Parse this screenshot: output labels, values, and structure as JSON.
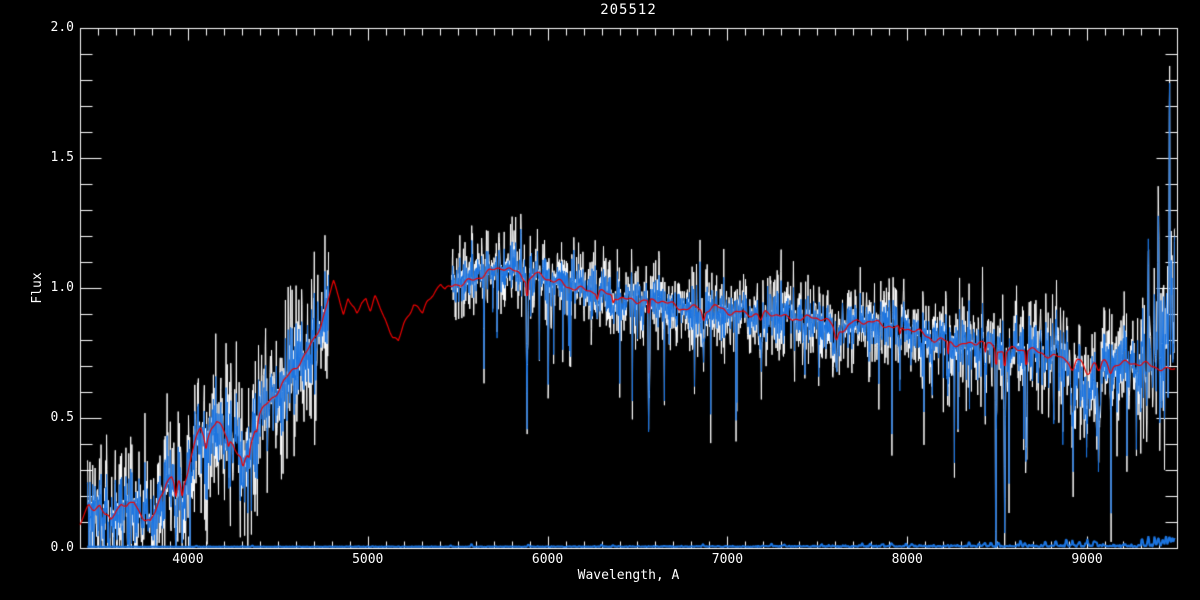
{
  "window": {
    "background": "#000000"
  },
  "chart_data": {
    "type": "line",
    "title": "205512",
    "xlabel": "Wavelength, A",
    "ylabel": "Flux",
    "xlim": [
      3400,
      9500
    ],
    "ylim": [
      0.0,
      2.0
    ],
    "grid": false,
    "legend": "none",
    "background_color": "#000000",
    "axis_color": "#ffffff",
    "x_major_ticks": [
      4000,
      5000,
      6000,
      7000,
      8000,
      9000
    ],
    "x_tick_labels": [
      "4000",
      "5000",
      "6000",
      "7000",
      "8000",
      "9000"
    ],
    "x_minor_step": 100,
    "y_major_ticks": [
      0.0,
      0.5,
      1.0,
      1.5,
      2.0
    ],
    "y_tick_labels": [
      "0.0",
      "0.5",
      "1.0",
      "1.5",
      "2.0"
    ],
    "y_minor_step": 0.1,
    "series": [
      {
        "name": "observed-raw-envelope",
        "color": "#ffffff",
        "role": "envelope",
        "noise_scale": 1.9
      },
      {
        "name": "observed-spectrum",
        "color": "#1b74e0",
        "role": "spectrum",
        "noise_scale": 1.0
      },
      {
        "name": "model-fit",
        "color": "#ee0000",
        "role": "model"
      },
      {
        "name": "sky-error-spectrum",
        "color": "#1b74e0",
        "role": "sky"
      }
    ],
    "data_range": [
      3440,
      9490
    ],
    "gap": [
      4783,
      5465
    ],
    "seed": 205512,
    "continuum": [
      [
        3400,
        0.09
      ],
      [
        3450,
        0.17
      ],
      [
        3480,
        0.16
      ],
      [
        3510,
        0.17
      ],
      [
        3540,
        0.12
      ],
      [
        3570,
        0.1
      ],
      [
        3600,
        0.14
      ],
      [
        3630,
        0.17
      ],
      [
        3660,
        0.15
      ],
      [
        3700,
        0.18
      ],
      [
        3730,
        0.15
      ],
      [
        3760,
        0.12
      ],
      [
        3790,
        0.1
      ],
      [
        3820,
        0.14
      ],
      [
        3850,
        0.2
      ],
      [
        3880,
        0.25
      ],
      [
        3910,
        0.26
      ],
      [
        3933,
        0.22
      ],
      [
        3950,
        0.25
      ],
      [
        3968,
        0.23
      ],
      [
        3985,
        0.27
      ],
      [
        4000,
        0.3
      ],
      [
        4020,
        0.36
      ],
      [
        4045,
        0.43
      ],
      [
        4070,
        0.46
      ],
      [
        4100,
        0.42
      ],
      [
        4130,
        0.46
      ],
      [
        4160,
        0.48
      ],
      [
        4190,
        0.45
      ],
      [
        4220,
        0.42
      ],
      [
        4250,
        0.4
      ],
      [
        4285,
        0.35
      ],
      [
        4310,
        0.33
      ],
      [
        4340,
        0.38
      ],
      [
        4370,
        0.46
      ],
      [
        4400,
        0.52
      ],
      [
        4440,
        0.55
      ],
      [
        4480,
        0.58
      ],
      [
        4520,
        0.62
      ],
      [
        4560,
        0.66
      ],
      [
        4600,
        0.7
      ],
      [
        4650,
        0.75
      ],
      [
        4700,
        0.8
      ],
      [
        4740,
        0.86
      ],
      [
        4780,
        0.95
      ],
      [
        4810,
        1.01
      ],
      [
        4840,
        0.96
      ],
      [
        4865,
        0.9
      ],
      [
        4890,
        0.97
      ],
      [
        4915,
        0.93
      ],
      [
        4940,
        0.9
      ],
      [
        4965,
        0.95
      ],
      [
        4990,
        0.97
      ],
      [
        5015,
        0.92
      ],
      [
        5040,
        0.96
      ],
      [
        5065,
        0.92
      ],
      [
        5090,
        0.88
      ],
      [
        5115,
        0.85
      ],
      [
        5140,
        0.81
      ],
      [
        5170,
        0.79
      ],
      [
        5200,
        0.86
      ],
      [
        5230,
        0.91
      ],
      [
        5255,
        0.95
      ],
      [
        5280,
        0.93
      ],
      [
        5305,
        0.9
      ],
      [
        5330,
        0.94
      ],
      [
        5355,
        0.97
      ],
      [
        5380,
        0.99
      ],
      [
        5405,
        1.01
      ],
      [
        5430,
        0.98
      ],
      [
        5455,
        1.0
      ],
      [
        5480,
        1.02
      ],
      [
        5520,
        1.02
      ],
      [
        5560,
        1.03
      ],
      [
        5600,
        1.04
      ],
      [
        5650,
        1.05
      ],
      [
        5700,
        1.06
      ],
      [
        5750,
        1.08
      ],
      [
        5800,
        1.07
      ],
      [
        5850,
        1.06
      ],
      [
        5890,
        1.03
      ],
      [
        5930,
        1.05
      ],
      [
        5980,
        1.04
      ],
      [
        6030,
        1.02
      ],
      [
        6080,
        1.02
      ],
      [
        6130,
        1.01
      ],
      [
        6180,
        1.0
      ],
      [
        6230,
        0.99
      ],
      [
        6280,
        0.98
      ],
      [
        6330,
        0.97
      ],
      [
        6380,
        0.97
      ],
      [
        6430,
        0.96
      ],
      [
        6480,
        0.96
      ],
      [
        6530,
        0.95
      ],
      [
        6580,
        0.94
      ],
      [
        6630,
        0.95
      ],
      [
        6680,
        0.94
      ],
      [
        6730,
        0.93
      ],
      [
        6780,
        0.93
      ],
      [
        6830,
        0.92
      ],
      [
        6880,
        0.91
      ],
      [
        6930,
        0.92
      ],
      [
        6980,
        0.92
      ],
      [
        7030,
        0.91
      ],
      [
        7080,
        0.91
      ],
      [
        7130,
        0.9
      ],
      [
        7180,
        0.89
      ],
      [
        7230,
        0.9
      ],
      [
        7280,
        0.9
      ],
      [
        7330,
        0.89
      ],
      [
        7380,
        0.89
      ],
      [
        7430,
        0.88
      ],
      [
        7480,
        0.88
      ],
      [
        7530,
        0.88
      ],
      [
        7580,
        0.86
      ],
      [
        7620,
        0.85
      ],
      [
        7660,
        0.85
      ],
      [
        7700,
        0.87
      ],
      [
        7750,
        0.87
      ],
      [
        7800,
        0.86
      ],
      [
        7850,
        0.86
      ],
      [
        7900,
        0.86
      ],
      [
        7950,
        0.85
      ],
      [
        8000,
        0.85
      ],
      [
        8050,
        0.83
      ],
      [
        8100,
        0.81
      ],
      [
        8150,
        0.8
      ],
      [
        8200,
        0.8
      ],
      [
        8250,
        0.8
      ],
      [
        8300,
        0.78
      ],
      [
        8350,
        0.78
      ],
      [
        8400,
        0.79
      ],
      [
        8450,
        0.78
      ],
      [
        8500,
        0.77
      ],
      [
        8550,
        0.76
      ],
      [
        8600,
        0.77
      ],
      [
        8650,
        0.76
      ],
      [
        8700,
        0.75
      ],
      [
        8750,
        0.75
      ],
      [
        8800,
        0.74
      ],
      [
        8850,
        0.74
      ],
      [
        8900,
        0.73
      ],
      [
        8950,
        0.72
      ],
      [
        9000,
        0.72
      ],
      [
        9050,
        0.72
      ],
      [
        9100,
        0.72
      ],
      [
        9150,
        0.71
      ],
      [
        9200,
        0.71
      ],
      [
        9250,
        0.71
      ],
      [
        9300,
        0.7
      ],
      [
        9350,
        0.7
      ],
      [
        9400,
        0.7
      ],
      [
        9450,
        0.69
      ],
      [
        9490,
        0.69
      ]
    ],
    "noise_sigma": [
      [
        3440,
        0.07
      ],
      [
        3700,
        0.075
      ],
      [
        4000,
        0.085
      ],
      [
        4300,
        0.09
      ],
      [
        4600,
        0.09
      ],
      [
        4783,
        0.08
      ],
      [
        5465,
        0.042
      ],
      [
        5800,
        0.042
      ],
      [
        6200,
        0.043
      ],
      [
        6600,
        0.045
      ],
      [
        7000,
        0.045
      ],
      [
        7400,
        0.048
      ],
      [
        7800,
        0.047
      ],
      [
        8200,
        0.05
      ],
      [
        8600,
        0.055
      ],
      [
        9000,
        0.062
      ],
      [
        9250,
        0.07
      ],
      [
        9490,
        0.08
      ]
    ],
    "down_spike_depth": [
      [
        3440,
        0.15
      ],
      [
        4780,
        0.2
      ],
      [
        5465,
        0.3
      ],
      [
        6600,
        0.38
      ],
      [
        7600,
        0.42
      ],
      [
        8600,
        0.45
      ],
      [
        9490,
        0.42
      ]
    ],
    "absorption_lines": [
      [
        3933,
        0.14,
        5
      ],
      [
        3968,
        0.12,
        5
      ],
      [
        4101,
        0.1,
        5
      ],
      [
        4226,
        0.1,
        4
      ],
      [
        4305,
        0.1,
        6
      ],
      [
        4340,
        0.09,
        4
      ],
      [
        4383,
        0.09,
        4
      ],
      [
        5886,
        0.56,
        3
      ],
      [
        6277,
        0.1,
        5
      ],
      [
        6365,
        0.09,
        4
      ],
      [
        6563,
        0.55,
        3
      ],
      [
        6867,
        0.16,
        7
      ],
      [
        7186,
        0.1,
        9
      ],
      [
        7605,
        0.2,
        9
      ],
      [
        7960,
        0.12,
        4
      ],
      [
        8227,
        0.22,
        3
      ],
      [
        8434,
        0.15,
        4
      ],
      [
        8494,
        0.42,
        3
      ],
      [
        8542,
        0.6,
        3
      ],
      [
        8662,
        0.52,
        3
      ],
      [
        8920,
        0.18,
        12
      ],
      [
        9000,
        0.2,
        20
      ],
      [
        9065,
        0.16,
        12
      ],
      [
        9130,
        0.1,
        8
      ]
    ],
    "emission_lines": [
      [
        5577,
        0.1,
        2.5
      ],
      [
        6300,
        0.07,
        2.5
      ],
      [
        7600,
        0.16,
        3
      ],
      [
        7640,
        0.08,
        2.5
      ],
      [
        8344,
        0.1,
        2.5
      ],
      [
        8827,
        0.1,
        2.5
      ],
      [
        8885,
        0.08,
        2.5
      ],
      [
        9310,
        0.18,
        2.5
      ],
      [
        9340,
        0.55,
        2.5
      ],
      [
        9376,
        0.28,
        2.5
      ],
      [
        9397,
        0.42,
        2.5
      ],
      [
        9412,
        0.25,
        2.5
      ],
      [
        9425,
        0.25,
        2.5
      ],
      [
        9441,
        0.35,
        2.5
      ],
      [
        9458,
        1.15,
        2.5
      ],
      [
        9470,
        0.4,
        2.5
      ],
      [
        9487,
        0.5,
        2.5
      ]
    ],
    "sky": {
      "baseline": 0.004,
      "sigma": [
        [
          3440,
          0.0012
        ],
        [
          5000,
          0.0015
        ],
        [
          6000,
          0.002
        ],
        [
          7000,
          0.003
        ],
        [
          7600,
          0.004
        ],
        [
          8200,
          0.005
        ],
        [
          8800,
          0.006
        ],
        [
          9200,
          0.007
        ],
        [
          9490,
          0.008
        ]
      ],
      "spikes": [
        [
          4047,
          0.004
        ],
        [
          4358,
          0.005
        ],
        [
          5461,
          0.005
        ],
        [
          5577,
          0.009
        ],
        [
          5893,
          0.007
        ],
        [
          6300,
          0.008
        ],
        [
          6364,
          0.006
        ],
        [
          6864,
          0.01
        ],
        [
          7245,
          0.01
        ],
        [
          7316,
          0.008
        ],
        [
          7524,
          0.008
        ],
        [
          7750,
          0.01
        ],
        [
          7794,
          0.01
        ],
        [
          7860,
          0.009
        ],
        [
          7913,
          0.011
        ],
        [
          7993,
          0.012
        ],
        [
          8025,
          0.01
        ],
        [
          8344,
          0.018
        ],
        [
          8399,
          0.012
        ],
        [
          8430,
          0.014
        ],
        [
          8465,
          0.012
        ],
        [
          8505,
          0.013
        ],
        [
          8630,
          0.018
        ],
        [
          8655,
          0.014
        ],
        [
          8767,
          0.018
        ],
        [
          8827,
          0.022
        ],
        [
          8885,
          0.026
        ],
        [
          8919,
          0.022
        ],
        [
          8958,
          0.018
        ],
        [
          9001,
          0.022
        ],
        [
          9038,
          0.018
        ],
        [
          9049,
          0.016
        ],
        [
          9306,
          0.028
        ],
        [
          9340,
          0.032
        ],
        [
          9376,
          0.03
        ],
        [
          9397,
          0.034
        ],
        [
          9420,
          0.028
        ],
        [
          9439,
          0.042
        ],
        [
          9458,
          0.038
        ],
        [
          9473,
          0.032
        ],
        [
          9486,
          0.028
        ]
      ]
    }
  }
}
